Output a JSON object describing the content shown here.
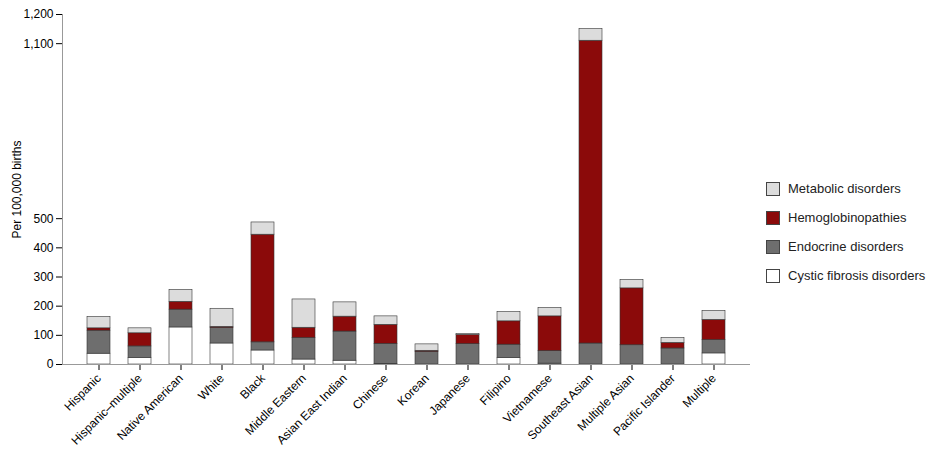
{
  "chart_data": {
    "type": "bar",
    "stacked": true,
    "legend": "right",
    "y_label": "Per 100,000 births",
    "categories": [
      "Hispanic",
      "Hispanic–multiple",
      "Native American",
      "White",
      "Black",
      "Middle Eastern",
      "Asian East Indian",
      "Chinese",
      "Korean",
      "Japanese",
      "Filipino",
      "Vietnamese",
      "Southeast Asian",
      "Multiple Asian",
      "Pacific Islander",
      "Multiple"
    ],
    "series": [
      {
        "name": "Cystic fibrosis disorders",
        "color": "#ffffff",
        "values": [
          37,
          22,
          127,
          72,
          48,
          17,
          13,
          2,
          0,
          0,
          22,
          3,
          0,
          0,
          0,
          38
        ]
      },
      {
        "name": "Endocrine disorders",
        "color": "#6e6e6e",
        "values": [
          79,
          40,
          61,
          53,
          28,
          74,
          100,
          69,
          43,
          70,
          46,
          43,
          72,
          66,
          55,
          46
        ]
      },
      {
        "name": "Hemoglobinopathies",
        "color": "#8b0a0a",
        "values": [
          8,
          45,
          27,
          4,
          369,
          35,
          51,
          65,
          4,
          31,
          80,
          119,
          1038,
          195,
          19,
          69
        ]
      },
      {
        "name": "Metabolic disorders",
        "color": "#dcdcdc",
        "values": [
          39,
          17,
          41,
          62,
          42,
          97,
          49,
          29,
          22,
          3,
          32,
          29,
          40,
          29,
          17,
          31
        ]
      }
    ],
    "ylim": [
      0,
      1200
    ],
    "yticks": [
      0,
      100,
      200,
      300,
      400,
      500,
      {
        "value": 1100,
        "label": "1,100"
      },
      {
        "value": 1200,
        "label": "1,200"
      }
    ],
    "grid": false
  }
}
